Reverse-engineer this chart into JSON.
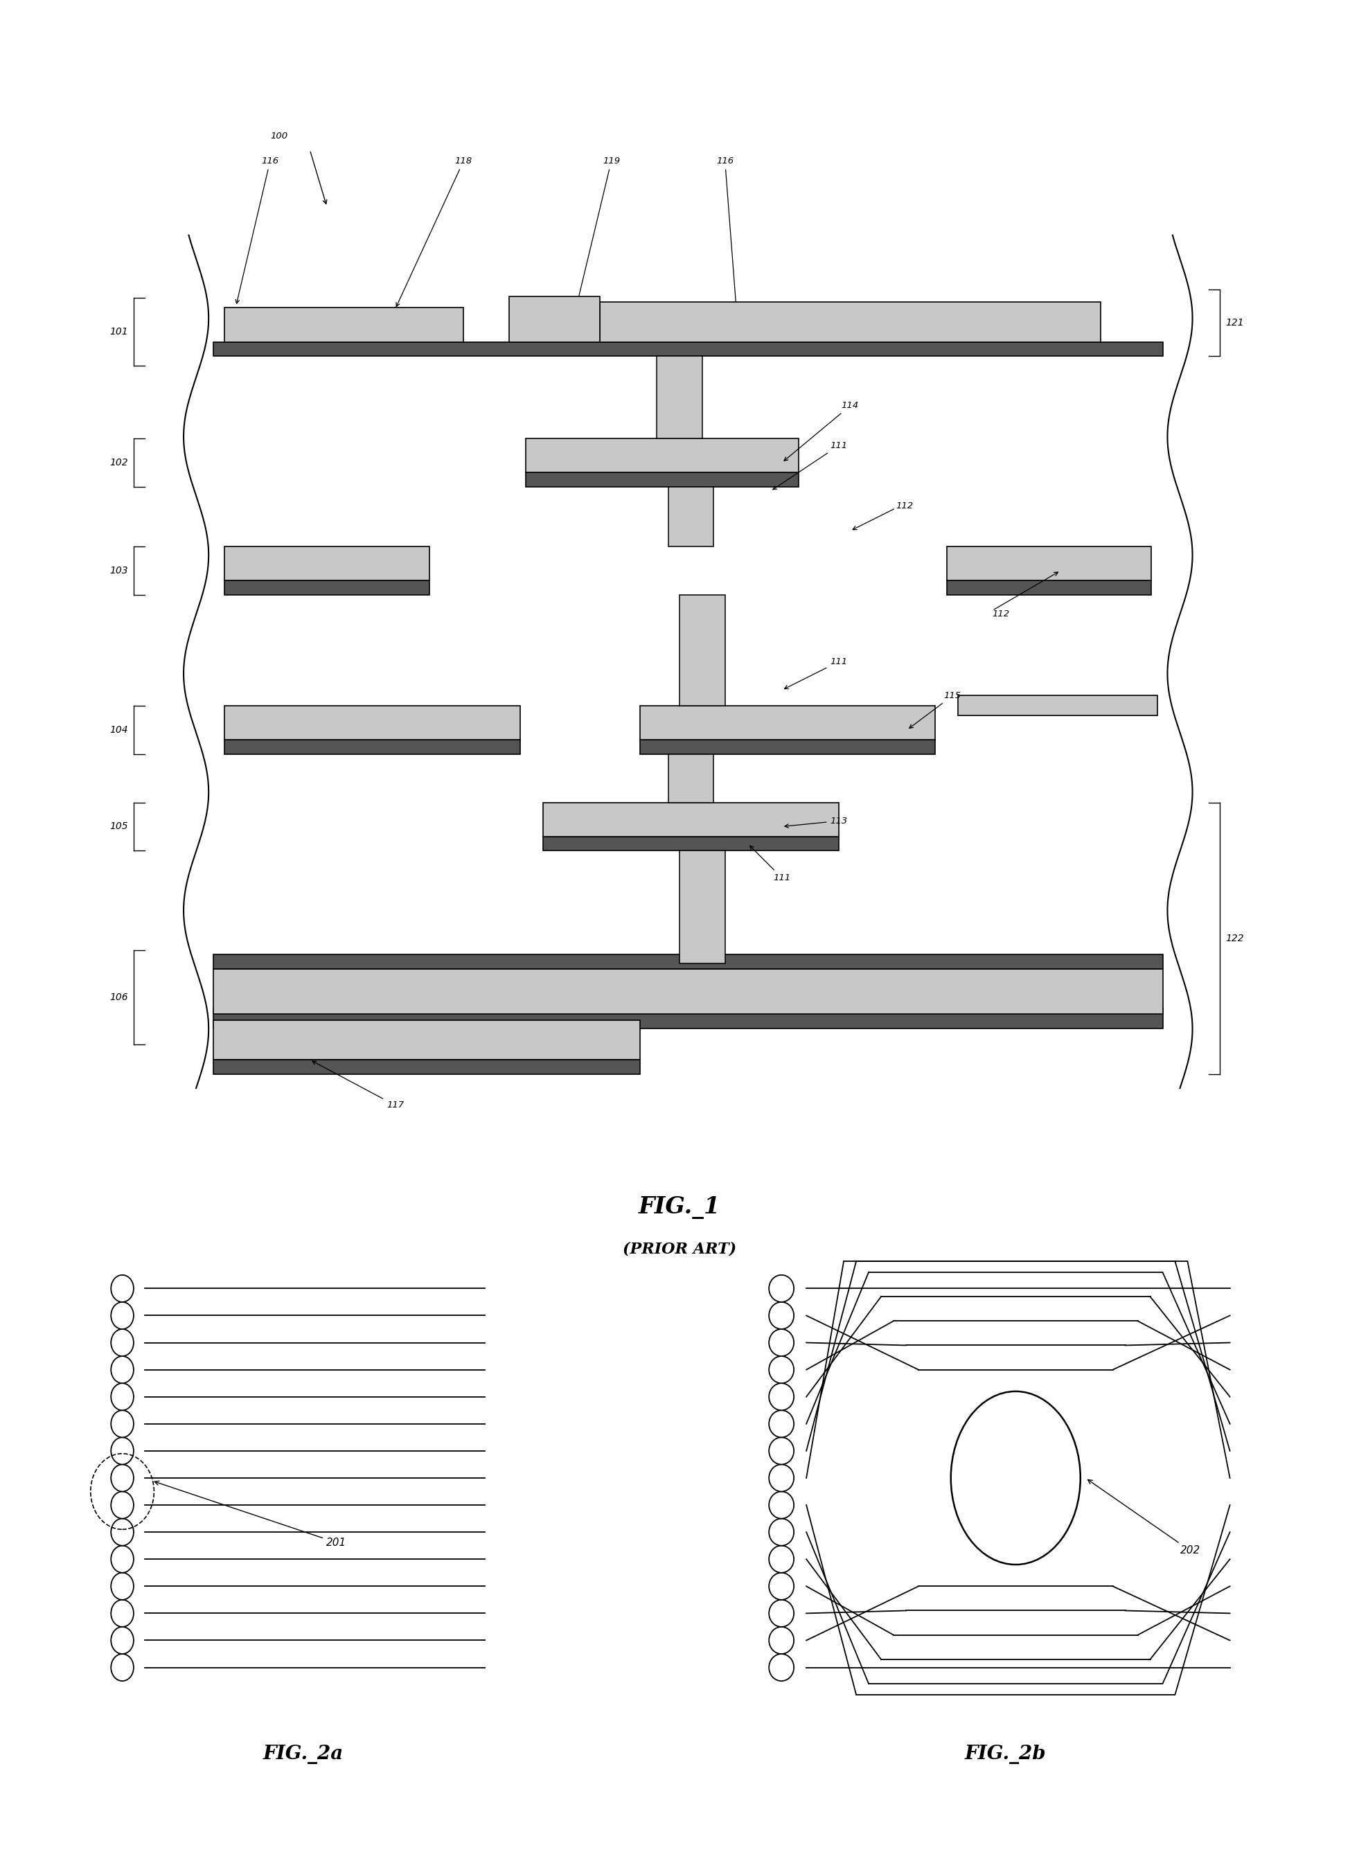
{
  "fig1": {
    "title": "FIG._1",
    "subtitle": "(PRIOR ART)",
    "labels": {
      "100": "100",
      "101": "101",
      "102": "102",
      "103": "103",
      "104": "104",
      "105": "105",
      "106": "106",
      "111": "111",
      "112": "112",
      "113": "113",
      "114": "114",
      "115": "115",
      "116": "116",
      "117": "117",
      "118": "118",
      "119": "119",
      "121": "121",
      "122": "122"
    }
  },
  "fig2a": {
    "title": "FIG._2a",
    "label_201": "201",
    "n_lines": 15
  },
  "fig2b": {
    "title": "FIG._2b",
    "label_202": "202",
    "n_lines": 15
  },
  "colors": {
    "white": "#ffffff",
    "black": "#000000",
    "stipple": "#c8c8c8",
    "dark_metal": "#555555",
    "background": "#ffffff"
  }
}
